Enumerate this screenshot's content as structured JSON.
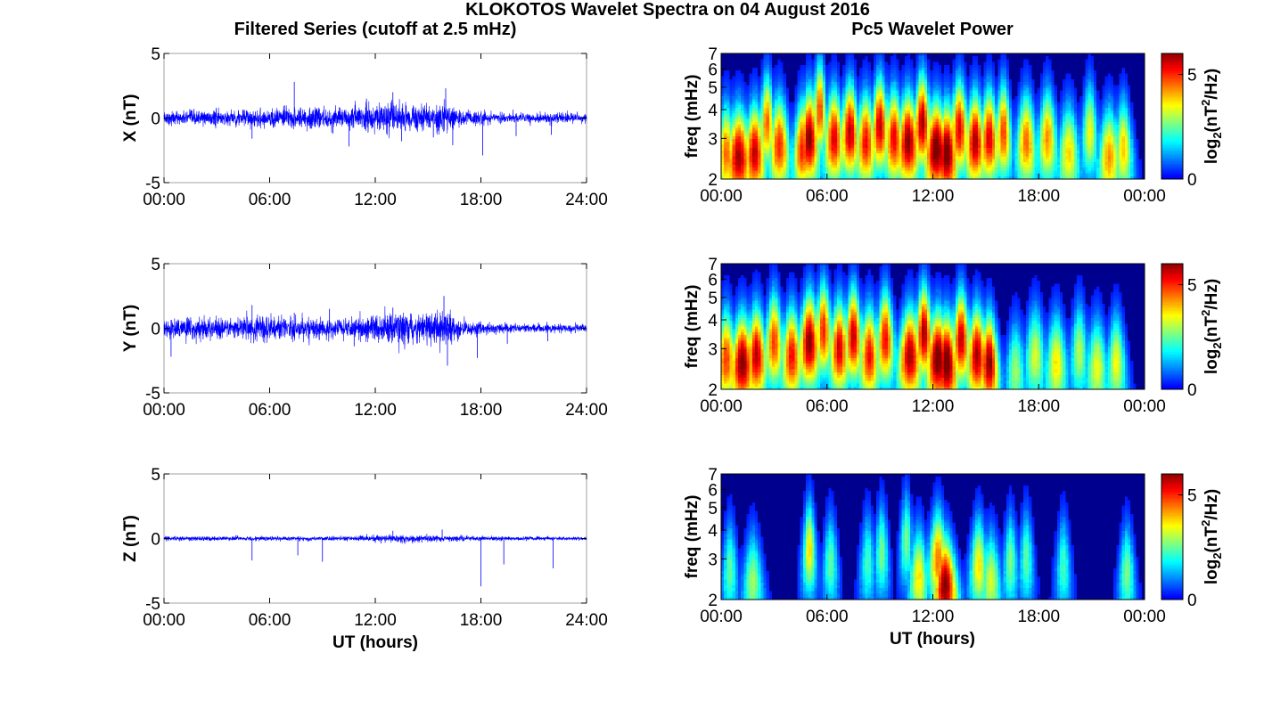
{
  "figure": {
    "title": "KLOKOTOS Wavelet Spectra on 04 August 2016",
    "left_title": "Filtered Series (cutoff at 2.5 mHz)",
    "right_title": "Pc5 Wavelet Power",
    "xlabel": "UT (hours)"
  },
  "colors": {
    "trace": "#0000ff",
    "axis": "#000000",
    "frame": "#a0a0a0",
    "colormap": "jet",
    "background_power": "#00008f"
  },
  "chart_data": [
    {
      "type": "line",
      "component": "X",
      "ylabel": "X (nT)",
      "xlim": [
        0,
        24
      ],
      "ylim": [
        -5,
        5
      ],
      "xticks": [
        "00:00",
        "06:00",
        "12:00",
        "18:00",
        "24:00"
      ],
      "yticks": [
        "5",
        "0",
        "-5"
      ],
      "grid": false,
      "noise_std": 0.25,
      "activity": [
        [
          0,
          1.0
        ],
        [
          2,
          1.1
        ],
        [
          4.5,
          1.3
        ],
        [
          7.5,
          1.6
        ],
        [
          9.5,
          1.5
        ],
        [
          11,
          2.0
        ],
        [
          13,
          2.3
        ],
        [
          14.5,
          1.8
        ],
        [
          16,
          2.4
        ],
        [
          17,
          1.2
        ],
        [
          19,
          0.8
        ],
        [
          22,
          0.7
        ],
        [
          24,
          0.7
        ]
      ],
      "spikes": [
        [
          5.0,
          -1.6
        ],
        [
          7.4,
          2.8
        ],
        [
          9.6,
          -1.2
        ],
        [
          10.5,
          -2.2
        ],
        [
          11.5,
          1.5
        ],
        [
          13.0,
          2.0
        ],
        [
          13.5,
          -1.8
        ],
        [
          15.3,
          -1.5
        ],
        [
          16.0,
          2.3
        ],
        [
          16.4,
          -2.1
        ],
        [
          18.1,
          -2.9
        ],
        [
          20.0,
          -1.4
        ],
        [
          22.0,
          -1.3
        ]
      ]
    },
    {
      "type": "line",
      "component": "Y",
      "ylabel": "Y (nT)",
      "xlim": [
        0,
        24
      ],
      "ylim": [
        -5,
        5
      ],
      "xticks": [
        "00:00",
        "06:00",
        "12:00",
        "18:00",
        "24:00"
      ],
      "yticks": [
        "5",
        "0",
        "-5"
      ],
      "grid": false,
      "noise_std": 0.28,
      "activity": [
        [
          0,
          1.2
        ],
        [
          1,
          1.6
        ],
        [
          4,
          1.1
        ],
        [
          5,
          2.0
        ],
        [
          7,
          1.5
        ],
        [
          9,
          1.2
        ],
        [
          11,
          1.4
        ],
        [
          13,
          2.2
        ],
        [
          14.5,
          1.8
        ],
        [
          16,
          2.6
        ],
        [
          17,
          1.0
        ],
        [
          20,
          0.6
        ],
        [
          24,
          0.6
        ]
      ],
      "spikes": [
        [
          0.4,
          -2.2
        ],
        [
          5.0,
          1.8
        ],
        [
          7.4,
          1.2
        ],
        [
          9.4,
          1.5
        ],
        [
          10.8,
          -1.4
        ],
        [
          13.0,
          1.6
        ],
        [
          15.9,
          2.5
        ],
        [
          16.1,
          -2.9
        ],
        [
          17.8,
          -2.3
        ],
        [
          19.5,
          -1.2
        ],
        [
          21.8,
          -1.0
        ]
      ]
    },
    {
      "type": "line",
      "component": "Z",
      "ylabel": "Z (nT)",
      "xlim": [
        0,
        24
      ],
      "ylim": [
        -5,
        5
      ],
      "xticks": [
        "00:00",
        "06:00",
        "12:00",
        "18:00",
        "24:00"
      ],
      "yticks": [
        "5",
        "0",
        "-5"
      ],
      "grid": false,
      "noise_std": 0.08,
      "activity": [
        [
          0,
          1.0
        ],
        [
          5,
          1.2
        ],
        [
          8,
          0.9
        ],
        [
          11,
          1.2
        ],
        [
          13,
          1.8
        ],
        [
          16,
          1.6
        ],
        [
          18,
          1.0
        ],
        [
          24,
          0.8
        ]
      ],
      "spikes": [
        [
          5.0,
          -1.7
        ],
        [
          7.6,
          -1.3
        ],
        [
          9.0,
          -1.8
        ],
        [
          13.0,
          0.6
        ],
        [
          15.8,
          0.7
        ],
        [
          18.0,
          -3.7
        ],
        [
          19.3,
          -2.0
        ],
        [
          22.1,
          -2.3
        ]
      ]
    },
    {
      "type": "heatmap",
      "component": "X",
      "ylabel": "freq (mHz)",
      "colorbar_label": "log2(nT2/Hz)",
      "colorbar_ticks": [
        "5",
        "0"
      ],
      "clim": [
        0,
        6
      ],
      "xlim": [
        0,
        24
      ],
      "ylim": [
        2,
        7
      ],
      "yscale": "log",
      "xticks": [
        "00:00",
        "06:00",
        "12:00",
        "18:00",
        "00:00"
      ],
      "yticks": [
        "7",
        "6",
        "5",
        "4",
        "3",
        "2"
      ],
      "blobs": [
        [
          0.3,
          2.6,
          0.25,
          4.5
        ],
        [
          1.0,
          2.5,
          0.35,
          5.8
        ],
        [
          1.9,
          2.6,
          0.3,
          5.6
        ],
        [
          2.6,
          3.5,
          0.25,
          4.5
        ],
        [
          3.3,
          2.8,
          0.3,
          5.0
        ],
        [
          4.6,
          2.7,
          0.25,
          5.0
        ],
        [
          5.0,
          3.0,
          0.3,
          6.0
        ],
        [
          5.6,
          4.0,
          0.25,
          4.8
        ],
        [
          6.4,
          3.0,
          0.3,
          5.4
        ],
        [
          7.3,
          3.2,
          0.3,
          5.7
        ],
        [
          8.2,
          2.9,
          0.3,
          5.2
        ],
        [
          9.0,
          3.4,
          0.3,
          5.6
        ],
        [
          9.8,
          3.0,
          0.3,
          5.3
        ],
        [
          10.6,
          2.9,
          0.35,
          6.0
        ],
        [
          11.4,
          3.5,
          0.3,
          5.8
        ],
        [
          12.2,
          2.7,
          0.35,
          6.3
        ],
        [
          12.8,
          2.6,
          0.3,
          6.3
        ],
        [
          13.5,
          3.3,
          0.3,
          5.4
        ],
        [
          14.4,
          2.9,
          0.3,
          5.8
        ],
        [
          15.2,
          3.0,
          0.3,
          5.4
        ],
        [
          16.0,
          3.2,
          0.25,
          4.8
        ],
        [
          17.3,
          2.9,
          0.3,
          4.5
        ],
        [
          18.5,
          3.0,
          0.3,
          4.2
        ],
        [
          19.7,
          2.6,
          0.3,
          3.7
        ],
        [
          20.9,
          3.2,
          0.25,
          3.4
        ],
        [
          22.0,
          2.5,
          0.3,
          4.2
        ],
        [
          22.8,
          2.7,
          0.25,
          3.8
        ]
      ]
    },
    {
      "type": "heatmap",
      "component": "Y",
      "ylabel": "freq (mHz)",
      "colorbar_label": "log2(nT2/Hz)",
      "colorbar_ticks": [
        "5",
        "0"
      ],
      "clim": [
        0,
        6
      ],
      "xlim": [
        0,
        24
      ],
      "ylim": [
        2,
        7
      ],
      "yscale": "log",
      "xticks": [
        "00:00",
        "06:00",
        "12:00",
        "18:00",
        "00:00"
      ],
      "yticks": [
        "7",
        "6",
        "5",
        "4",
        "3",
        "2"
      ],
      "blobs": [
        [
          0.3,
          2.7,
          0.3,
          4.8
        ],
        [
          1.2,
          2.6,
          0.35,
          6.0
        ],
        [
          2.0,
          2.8,
          0.3,
          5.7
        ],
        [
          3.0,
          3.2,
          0.3,
          4.8
        ],
        [
          4.0,
          2.8,
          0.3,
          5.2
        ],
        [
          5.0,
          3.2,
          0.35,
          6.0
        ],
        [
          5.8,
          3.6,
          0.3,
          5.0
        ],
        [
          6.7,
          3.0,
          0.3,
          5.5
        ],
        [
          7.5,
          3.4,
          0.3,
          5.6
        ],
        [
          8.4,
          2.8,
          0.3,
          5.2
        ],
        [
          9.3,
          3.3,
          0.3,
          5.2
        ],
        [
          10.7,
          2.8,
          0.35,
          5.8
        ],
        [
          11.5,
          3.5,
          0.3,
          5.8
        ],
        [
          12.3,
          2.7,
          0.35,
          6.3
        ],
        [
          12.8,
          2.6,
          0.3,
          6.4
        ],
        [
          13.6,
          3.3,
          0.3,
          5.6
        ],
        [
          14.5,
          2.8,
          0.3,
          5.8
        ],
        [
          15.2,
          2.6,
          0.25,
          6.0
        ],
        [
          16.7,
          2.4,
          0.25,
          2.8
        ],
        [
          17.8,
          2.8,
          0.3,
          3.2
        ],
        [
          19.0,
          2.6,
          0.3,
          3.6
        ],
        [
          20.3,
          2.9,
          0.25,
          3.0
        ],
        [
          21.3,
          2.5,
          0.3,
          3.3
        ],
        [
          22.4,
          2.6,
          0.25,
          3.4
        ]
      ]
    },
    {
      "type": "heatmap",
      "component": "Z",
      "ylabel": "freq (mHz)",
      "colorbar_label": "log2(nT2/Hz)",
      "colorbar_ticks": [
        "5",
        "0"
      ],
      "clim": [
        0,
        6
      ],
      "xlim": [
        0,
        24
      ],
      "ylim": [
        2,
        7
      ],
      "yscale": "log",
      "xticks": [
        "00:00",
        "06:00",
        "12:00",
        "18:00",
        "00:00"
      ],
      "yticks": [
        "7",
        "6",
        "5",
        "4",
        "3",
        "2"
      ],
      "blobs": [
        [
          0.5,
          2.7,
          0.2,
          2.4
        ],
        [
          1.8,
          2.4,
          0.25,
          2.8
        ],
        [
          5.0,
          3.3,
          0.2,
          3.6
        ],
        [
          6.2,
          2.9,
          0.2,
          2.4
        ],
        [
          8.3,
          2.9,
          0.2,
          2.2
        ],
        [
          9.1,
          3.2,
          0.2,
          2.6
        ],
        [
          10.5,
          3.6,
          0.2,
          2.6
        ],
        [
          11.2,
          2.5,
          0.25,
          3.6
        ],
        [
          12.3,
          3.0,
          0.3,
          4.4
        ],
        [
          12.7,
          2.3,
          0.3,
          6.0
        ],
        [
          14.6,
          2.8,
          0.25,
          3.6
        ],
        [
          15.3,
          2.4,
          0.25,
          3.2
        ],
        [
          16.4,
          2.9,
          0.2,
          2.6
        ],
        [
          17.3,
          3.0,
          0.2,
          2.4
        ],
        [
          19.4,
          2.8,
          0.2,
          2.2
        ],
        [
          23.0,
          2.6,
          0.2,
          2.6
        ]
      ]
    }
  ]
}
